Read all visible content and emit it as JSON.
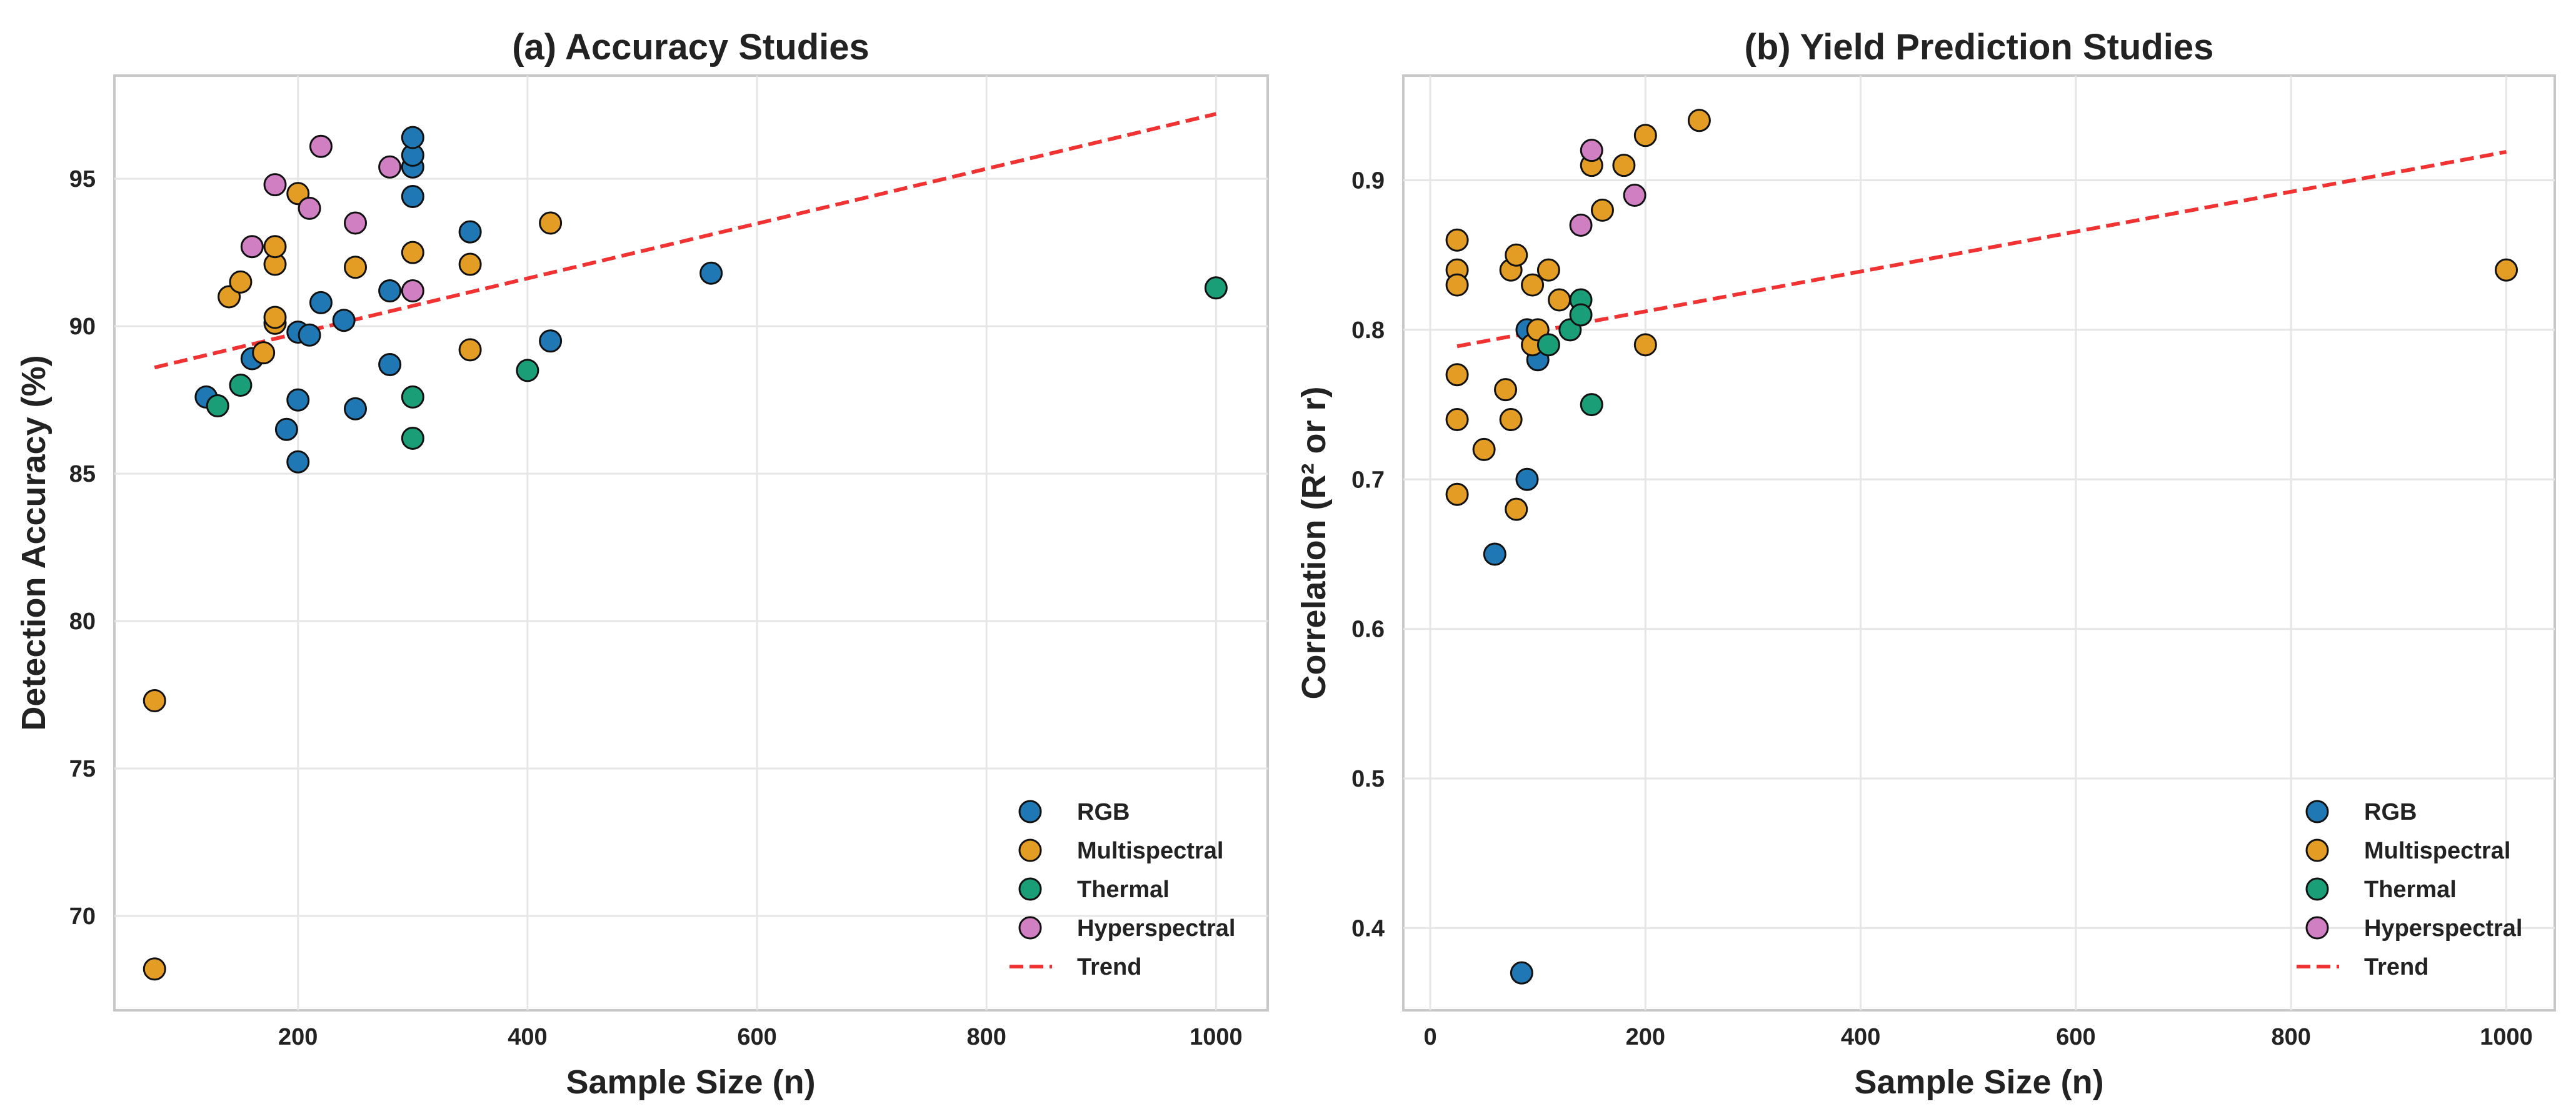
{
  "colors": {
    "RGB": "#1f77b4",
    "Multispectral": "#e39d24",
    "Thermal": "#1a9e77",
    "Hyperspectral": "#d17fc3",
    "Trend": "#f03232"
  },
  "chart_data": [
    {
      "type": "scatter",
      "title": "(a) Accuracy Studies",
      "xlabel": "Sample Size (n)",
      "ylabel": "Detection Accuracy (%)",
      "xlim": [
        40,
        1045
      ],
      "ylim": [
        66.8,
        98.5
      ],
      "xticks": [
        200,
        400,
        600,
        800,
        1000
      ],
      "yticks": [
        70,
        75,
        80,
        85,
        90,
        95
      ],
      "grid": true,
      "legend_position": "bottom-right",
      "series": [
        {
          "name": "RGB",
          "points": [
            [
              120,
              87.6
            ],
            [
              160,
              88.9
            ],
            [
              190,
              86.5
            ],
            [
              200,
              85.4
            ],
            [
              200,
              87.5
            ],
            [
              200,
              89.8
            ],
            [
              210,
              89.7
            ],
            [
              220,
              90.8
            ],
            [
              240,
              90.2
            ],
            [
              250,
              87.2
            ],
            [
              280,
              88.7
            ],
            [
              280,
              91.2
            ],
            [
              300,
              94.4
            ],
            [
              300,
              95.4
            ],
            [
              300,
              95.8
            ],
            [
              300,
              96.4
            ],
            [
              350,
              93.2
            ],
            [
              420,
              89.5
            ],
            [
              560,
              91.8
            ]
          ]
        },
        {
          "name": "Multispectral",
          "points": [
            [
              75,
              77.3
            ],
            [
              75,
              68.2
            ],
            [
              140,
              91.0
            ],
            [
              150,
              91.5
            ],
            [
              170,
              89.1
            ],
            [
              180,
              90.1
            ],
            [
              180,
              90.3
            ],
            [
              180,
              92.1
            ],
            [
              180,
              92.7
            ],
            [
              200,
              94.5
            ],
            [
              250,
              92.0
            ],
            [
              300,
              92.5
            ],
            [
              350,
              89.2
            ],
            [
              350,
              92.1
            ],
            [
              420,
              93.5
            ]
          ]
        },
        {
          "name": "Thermal",
          "points": [
            [
              130,
              87.3
            ],
            [
              150,
              88.0
            ],
            [
              300,
              87.6
            ],
            [
              300,
              86.2
            ],
            [
              400,
              88.5
            ],
            [
              1000,
              91.3
            ]
          ]
        },
        {
          "name": "Hyperspectral",
          "points": [
            [
              160,
              92.7
            ],
            [
              180,
              94.8
            ],
            [
              210,
              94.0
            ],
            [
              220,
              96.1
            ],
            [
              250,
              93.5
            ],
            [
              280,
              95.4
            ],
            [
              300,
              91.2
            ]
          ]
        }
      ],
      "trend": {
        "name": "Trend",
        "x": [
          75,
          1000
        ],
        "y": [
          88.6,
          97.2
        ]
      }
    },
    {
      "type": "scatter",
      "title": "(b) Yield Prediction Studies",
      "xlabel": "Sample Size (n)",
      "ylabel": "Correlation (R² or r)",
      "xlim": [
        -25,
        1045
      ],
      "ylim": [
        0.345,
        0.97
      ],
      "xticks": [
        0,
        200,
        400,
        600,
        800,
        1000
      ],
      "yticks": [
        0.4,
        0.5,
        0.6,
        0.7,
        0.8,
        0.9
      ],
      "grid": true,
      "legend_position": "bottom-right",
      "series": [
        {
          "name": "RGB",
          "points": [
            [
              60,
              0.65
            ],
            [
              85,
              0.37
            ],
            [
              90,
              0.7
            ],
            [
              90,
              0.8
            ],
            [
              100,
              0.78
            ]
          ]
        },
        {
          "name": "Multispectral",
          "points": [
            [
              25,
              0.86
            ],
            [
              25,
              0.84
            ],
            [
              25,
              0.83
            ],
            [
              25,
              0.77
            ],
            [
              25,
              0.74
            ],
            [
              25,
              0.69
            ],
            [
              50,
              0.72
            ],
            [
              70,
              0.76
            ],
            [
              75,
              0.84
            ],
            [
              75,
              0.74
            ],
            [
              80,
              0.85
            ],
            [
              80,
              0.68
            ],
            [
              95,
              0.83
            ],
            [
              95,
              0.79
            ],
            [
              100,
              0.8
            ],
            [
              110,
              0.84
            ],
            [
              120,
              0.82
            ],
            [
              150,
              0.91
            ],
            [
              160,
              0.88
            ],
            [
              180,
              0.91
            ],
            [
              200,
              0.93
            ],
            [
              200,
              0.79
            ],
            [
              250,
              0.94
            ],
            [
              1000,
              0.84
            ]
          ]
        },
        {
          "name": "Thermal",
          "points": [
            [
              110,
              0.79
            ],
            [
              130,
              0.8
            ],
            [
              140,
              0.82
            ],
            [
              140,
              0.81
            ],
            [
              150,
              0.75
            ]
          ]
        },
        {
          "name": "Hyperspectral",
          "points": [
            [
              140,
              0.87
            ],
            [
              150,
              0.92
            ],
            [
              190,
              0.89
            ]
          ]
        }
      ],
      "trend": {
        "name": "Trend",
        "x": [
          25,
          1000
        ],
        "y": [
          0.789,
          0.919
        ]
      }
    }
  ]
}
